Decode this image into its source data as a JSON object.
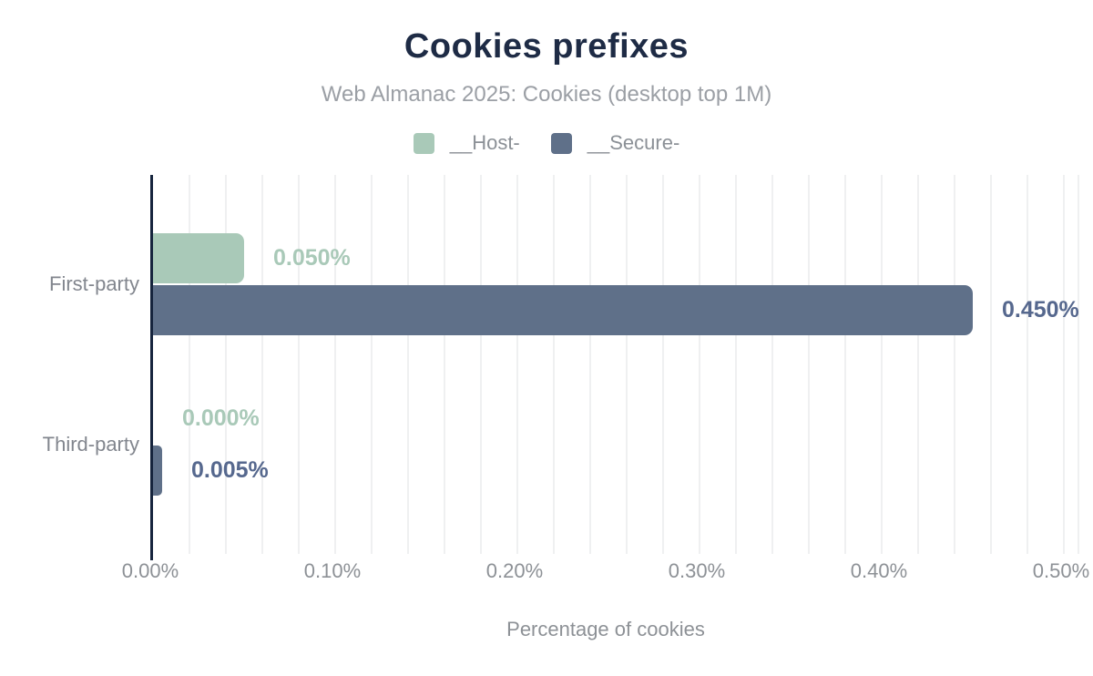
{
  "title": "Cookies prefixes",
  "subtitle": "Web Almanac 2025: Cookies (desktop top 1M)",
  "chart_data": {
    "type": "bar",
    "orientation": "horizontal",
    "title": "Cookies prefixes",
    "subtitle": "Web Almanac 2025: Cookies (desktop top 1M)",
    "xlabel": "Percentage of cookies",
    "categories": [
      "First-party",
      "Third-party"
    ],
    "series": [
      {
        "name": "__Host-",
        "color": "#a9c9b8",
        "label_color": "#a9c9b8",
        "values": [
          0.05,
          0.0
        ],
        "value_labels": [
          "0.050%",
          "0.000%"
        ]
      },
      {
        "name": "__Secure-",
        "color": "#5f7089",
        "label_color": "#56688e",
        "values": [
          0.45,
          0.005
        ],
        "value_labels": [
          "0.450%",
          "0.005%"
        ]
      }
    ],
    "xlim": [
      0,
      0.5
    ],
    "xticks": [
      {
        "value": 0.0,
        "label": "0.00%"
      },
      {
        "value": 0.1,
        "label": "0.10%"
      },
      {
        "value": 0.2,
        "label": "0.20%"
      },
      {
        "value": 0.3,
        "label": "0.30%"
      },
      {
        "value": 0.4,
        "label": "0.40%"
      },
      {
        "value": 0.5,
        "label": "0.50%"
      }
    ],
    "grid_step": 0.02,
    "grid": true,
    "legend_position": "top",
    "axis_color": "#16243d",
    "grid_color": "#eff0f1"
  }
}
